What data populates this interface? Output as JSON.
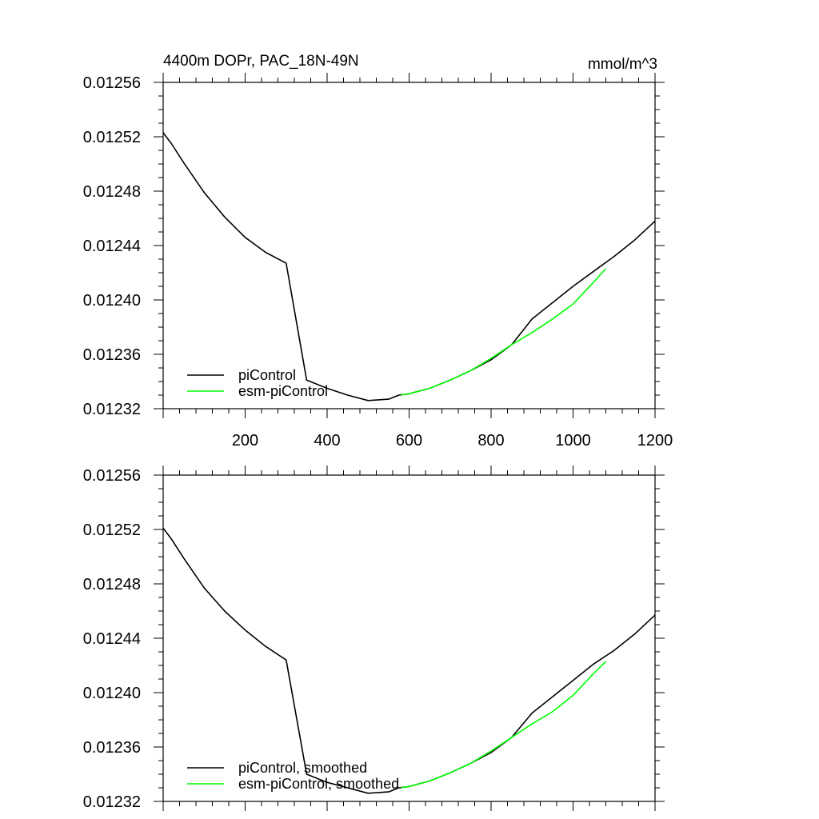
{
  "chart_data": [
    {
      "type": "line",
      "title": "4400m DOPr, PAC_18N-49N",
      "units": "mmol/m^3",
      "xlim": [
        0,
        1200
      ],
      "ylim": [
        0.01232,
        0.01256
      ],
      "x_ticks": [
        200,
        400,
        600,
        800,
        1000,
        1200
      ],
      "y_ticks": [
        "0.01232",
        "0.01236",
        "0.01240",
        "0.01244",
        "0.01248",
        "0.01252",
        "0.01256"
      ],
      "grid": false,
      "legend_position": "bottom-left",
      "series": [
        {
          "name": "piControl",
          "color": "#000000",
          "x": [
            0,
            20,
            50,
            100,
            150,
            200,
            250,
            300,
            350,
            400,
            450,
            500,
            550,
            575,
            600,
            650,
            700,
            750,
            800,
            850,
            900,
            950,
            1000,
            1050,
            1100,
            1150,
            1200
          ],
          "y": [
            0.012523,
            0.012515,
            0.012501,
            0.012479,
            0.012461,
            0.012446,
            0.012435,
            0.012427,
            0.012341,
            0.012335,
            0.01233,
            0.012326,
            0.012327,
            0.01233,
            0.012331,
            0.012335,
            0.012341,
            0.012348,
            0.012356,
            0.012367,
            0.012386,
            0.012398,
            0.01241,
            0.012421,
            0.012432,
            0.012444,
            0.012458
          ]
        },
        {
          "name": "esm-piControl",
          "color": "#00ff00",
          "x": [
            580,
            600,
            650,
            700,
            750,
            800,
            850,
            900,
            950,
            1000,
            1050,
            1080
          ],
          "y": [
            0.01233,
            0.012331,
            0.012335,
            0.012341,
            0.012348,
            0.012357,
            0.012367,
            0.012376,
            0.012386,
            0.012397,
            0.012413,
            0.012423
          ]
        }
      ]
    },
    {
      "type": "line",
      "xlim": [
        0,
        1200
      ],
      "ylim": [
        0.01232,
        0.01256
      ],
      "y_ticks": [
        "0.01232",
        "0.01236",
        "0.01240",
        "0.01244",
        "0.01248",
        "0.01252",
        "0.01256"
      ],
      "grid": false,
      "legend_position": "bottom-left",
      "series": [
        {
          "name": "piControl, smoothed",
          "color": "#000000",
          "x": [
            0,
            20,
            50,
            100,
            150,
            200,
            250,
            300,
            350,
            400,
            450,
            500,
            550,
            575,
            600,
            650,
            700,
            750,
            800,
            850,
            900,
            950,
            1000,
            1050,
            1100,
            1150,
            1200
          ],
          "y": [
            0.012521,
            0.012513,
            0.012499,
            0.012477,
            0.01246,
            0.012446,
            0.012434,
            0.012424,
            0.01234,
            0.012334,
            0.01233,
            0.012326,
            0.012327,
            0.01233,
            0.012331,
            0.012335,
            0.012341,
            0.012348,
            0.012356,
            0.012367,
            0.012385,
            0.012397,
            0.012409,
            0.012421,
            0.012431,
            0.012443,
            0.012457
          ]
        },
        {
          "name": "esm-piControl, smoothed",
          "color": "#00ff00",
          "x": [
            580,
            600,
            650,
            700,
            750,
            800,
            850,
            900,
            950,
            1000,
            1050,
            1080
          ],
          "y": [
            0.01233,
            0.012331,
            0.012335,
            0.012341,
            0.012348,
            0.012357,
            0.012367,
            0.012377,
            0.012386,
            0.012398,
            0.012414,
            0.012423
          ]
        }
      ]
    }
  ]
}
